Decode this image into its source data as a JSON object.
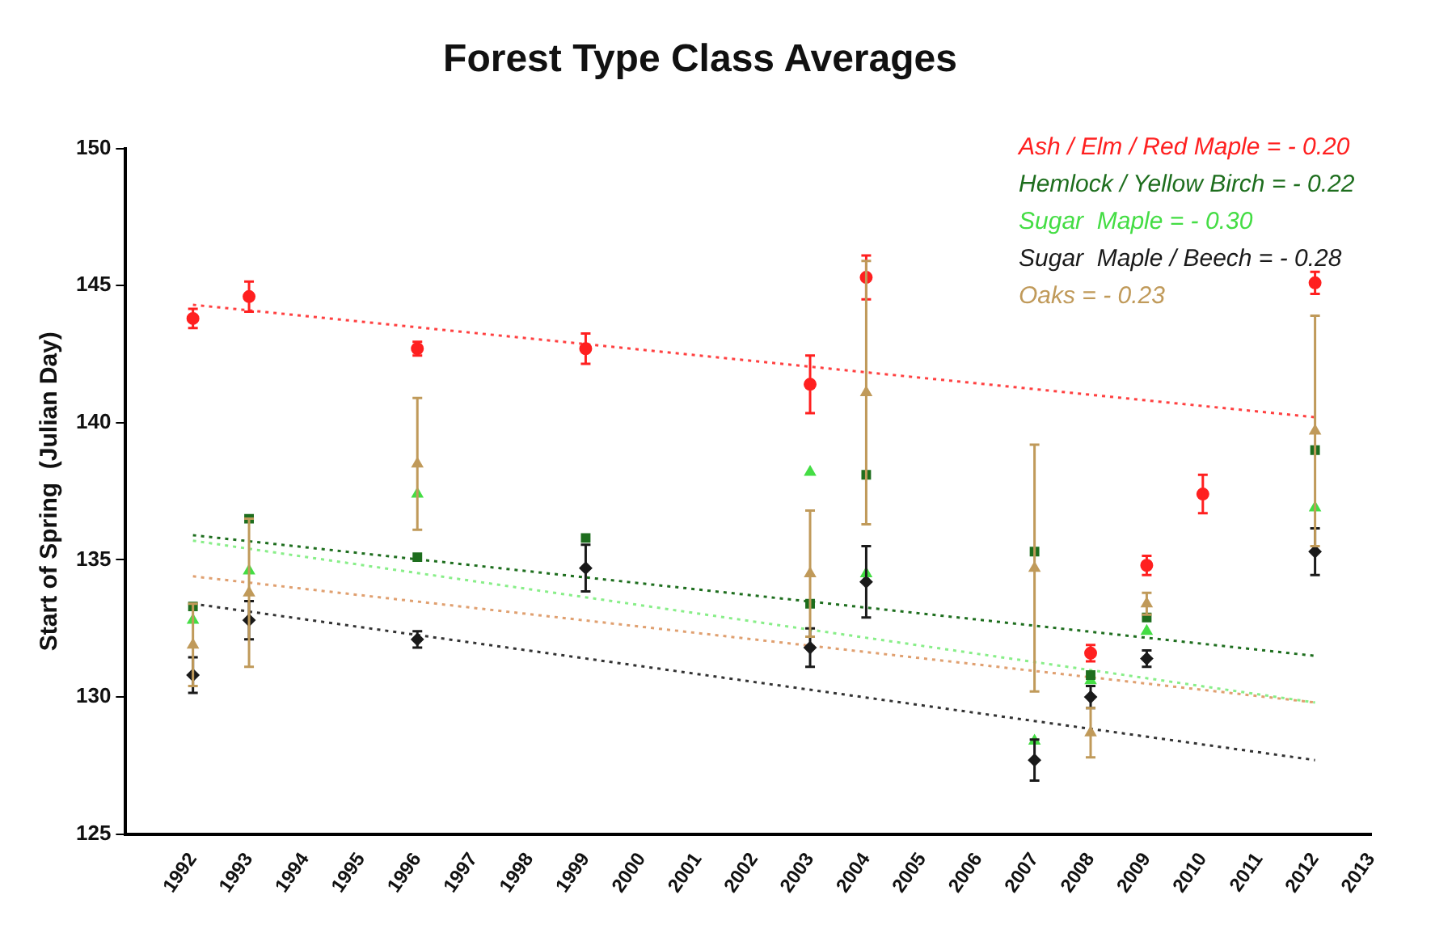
{
  "chart_data": {
    "type": "scatter",
    "title": "Forest Type Class Averages",
    "ylabel": "Start of Spring  (Julian Day)",
    "xlim": [
      1990.8,
      2013
    ],
    "xticks": [
      1992,
      1993,
      1994,
      1995,
      1996,
      1997,
      1998,
      1999,
      2000,
      2001,
      2002,
      2003,
      2004,
      2005,
      2006,
      2007,
      2008,
      2009,
      2010,
      2011,
      2012,
      2013
    ],
    "ylim": [
      125,
      150
    ],
    "yticks": [
      125,
      130,
      135,
      140,
      145,
      150
    ],
    "grid": false,
    "legend": "top right",
    "series": [
      {
        "name": "Ash / Elm / Red Maple = - 0.20",
        "color": "#ff2020",
        "marker": "circle",
        "x": [
          1992,
          1993,
          1996,
          1999,
          2003,
          2004,
          2008,
          2009,
          2010,
          2012
        ],
        "values": [
          143.8,
          144.6,
          142.7,
          142.7,
          141.4,
          145.3,
          131.6,
          134.8,
          137.4,
          145.1
        ],
        "errors": [
          0.35,
          0.55,
          0.25,
          0.55,
          1.05,
          0.8,
          0.3,
          0.35,
          0.7,
          0.4
        ]
      },
      {
        "name": "Hemlock / Yellow Birch = - 0.22",
        "color": "#1e6e1e",
        "marker": "square",
        "x": [
          1992,
          1993,
          1996,
          1999,
          2003,
          2004,
          2007,
          2008,
          2009,
          2012
        ],
        "values": [
          133.3,
          136.5,
          135.1,
          135.8,
          133.4,
          138.1,
          135.3,
          130.8,
          132.9,
          139.0
        ]
      },
      {
        "name": "Sugar  Maple = - 0.30",
        "color": "#44dd44",
        "marker": "triangle",
        "x": [
          1992,
          1993,
          1996,
          1999,
          2003,
          2004,
          2007,
          2008,
          2009,
          2012
        ],
        "values": [
          132.8,
          134.6,
          137.4,
          null,
          138.2,
          134.5,
          128.4,
          130.6,
          132.4,
          136.9
        ]
      },
      {
        "name": "Sugar  Maple / Beech = - 0.28",
        "color": "#1a1a1a",
        "marker": "diamond",
        "x": [
          1992,
          1993,
          1996,
          1999,
          2003,
          2004,
          2007,
          2008,
          2009,
          2012
        ],
        "values": [
          130.8,
          132.8,
          132.1,
          134.7,
          131.8,
          134.2,
          127.7,
          130.0,
          131.4,
          135.3
        ],
        "errors": [
          0.65,
          0.7,
          0.3,
          0.85,
          0.7,
          1.3,
          0.75,
          0.4,
          0.3,
          0.85
        ]
      },
      {
        "name": "Oaks = - 0.23",
        "color": "#c09a5a",
        "marker": "triangle",
        "x": [
          1992,
          1993,
          1996,
          1999,
          2003,
          2004,
          2007,
          2008,
          2009,
          2012
        ],
        "values": [
          131.9,
          133.8,
          138.5,
          null,
          134.5,
          141.1,
          134.7,
          128.7,
          133.4,
          139.7
        ],
        "errors": [
          1.5,
          2.7,
          2.4,
          null,
          2.3,
          4.8,
          4.5,
          0.9,
          0.4,
          4.2
        ]
      },
      {
        "type": "line",
        "color": "#ff4040",
        "line_style": "dotted",
        "marker": "none",
        "x": [
          1992,
          2012
        ],
        "values": [
          144.3,
          140.2
        ]
      },
      {
        "type": "line",
        "color": "#1e6e1e",
        "line_style": "dotted",
        "marker": "none",
        "x": [
          1992,
          2012
        ],
        "values": [
          135.9,
          131.5
        ]
      },
      {
        "type": "line",
        "color": "#88ee88",
        "line_style": "dotted",
        "marker": "none",
        "x": [
          1992,
          2012
        ],
        "values": [
          135.7,
          129.8
        ]
      },
      {
        "type": "line",
        "color": "#e0a070",
        "line_style": "dotted",
        "marker": "none",
        "x": [
          1992,
          2012
        ],
        "values": [
          134.4,
          129.8
        ]
      },
      {
        "type": "line",
        "color": "#333333",
        "line_style": "dotted",
        "marker": "none",
        "x": [
          1992,
          2012
        ],
        "values": [
          133.4,
          127.7
        ]
      }
    ]
  }
}
